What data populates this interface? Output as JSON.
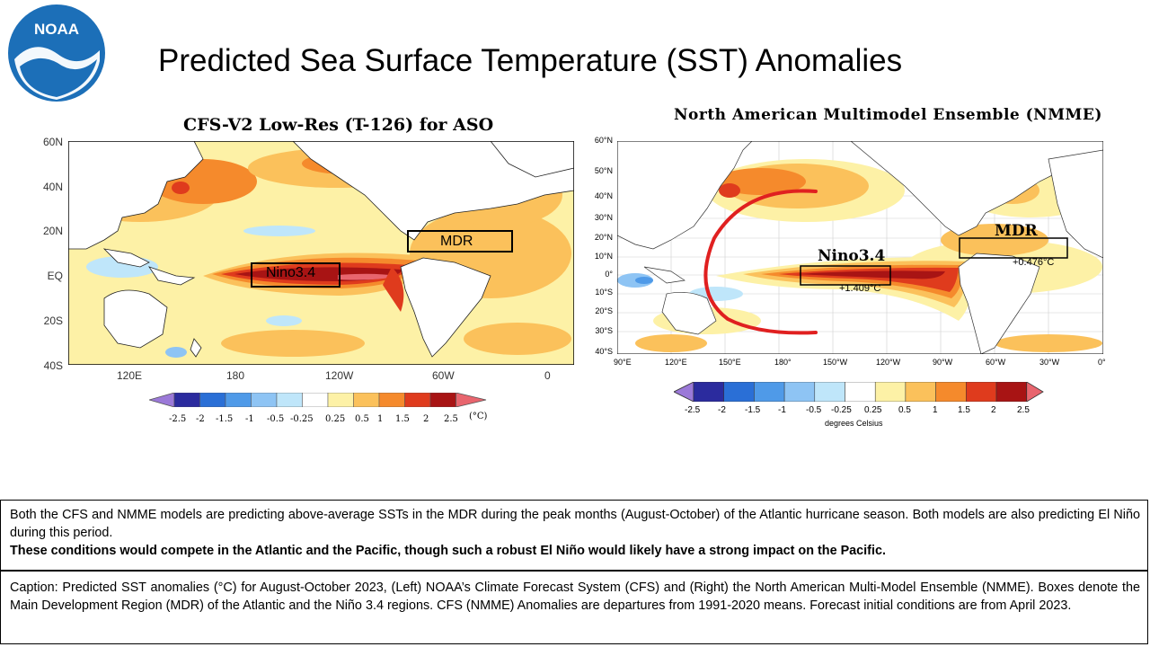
{
  "logo": {
    "text": "NOAA",
    "icon": "noaa-logo-icon"
  },
  "slide_title": "Predicted Sea Surface Temperature (SST) Anomalies",
  "left_panel": {
    "title": "CFS-V2 Low-Res (T-126) for ASO",
    "lat_labels": [
      "60N",
      "40N",
      "20N",
      "EQ",
      "20S",
      "40S"
    ],
    "lon_labels": [
      "120E",
      "180",
      "120W",
      "60W",
      "0"
    ],
    "boxes": [
      {
        "name": "Nino3.4",
        "label": "Nino3.4"
      },
      {
        "name": "MDR",
        "label": "MDR"
      }
    ],
    "colorbar_ticks": [
      "-2.5",
      "-2",
      "-1.5",
      "-1",
      "-0.5",
      "-0.25",
      "0.25",
      "0.5",
      "1",
      "1.5",
      "2",
      "2.5"
    ],
    "colorbar_unit": "(°C)"
  },
  "right_panel": {
    "title": "North American Multimodel Ensemble (NMME)",
    "lat_labels": [
      "60°N",
      "50°N",
      "40°N",
      "30°N",
      "20°N",
      "10°N",
      "0°",
      "10°S",
      "20°S",
      "30°S",
      "40°S"
    ],
    "lon_labels": [
      "90°E",
      "120°E",
      "150°E",
      "180°",
      "150°W",
      "120°W",
      "90°W",
      "60°W",
      "30°W",
      "0°"
    ],
    "boxes": [
      {
        "name": "Nino3.4",
        "label": "Nino3.4",
        "value": "+1.409°C"
      },
      {
        "name": "MDR",
        "label": "MDR",
        "value": "+0.476°C"
      }
    ],
    "colorbar_ticks": [
      "-2.5",
      "-2",
      "-1.5",
      "-1",
      "-0.5",
      "-0.25",
      "0.25",
      "0.5",
      "1",
      "1.5",
      "2",
      "2.5"
    ],
    "colorbar_unit": "degrees Celsius",
    "annotation": "red-arc-arrow"
  },
  "colors": {
    "scale": [
      "#9b79d8",
      "#2b2b9e",
      "#2a6fd6",
      "#4f9ae8",
      "#8ec4f4",
      "#bfe6fa",
      "#ffffff",
      "#fdf1a6",
      "#fbc15b",
      "#f58a2c",
      "#df3b1d",
      "#a81414",
      "#e8656e"
    ],
    "accent_red": "#e02020",
    "noaa_blue": "#1c6fb8"
  },
  "summary": {
    "line1": "Both the CFS and NMME models are predicting above-average SSTs in the MDR during the peak months (August-October) of the Atlantic hurricane season. Both models are also predicting El Niño during this period.",
    "line2": "These conditions would compete in the Atlantic and the Pacific, though such a robust El Niño would likely have a strong impact on the Pacific."
  },
  "caption": "Caption: Predicted SST anomalies (°C) for August-October 2023, (Left) NOAA’s Climate Forecast System (CFS) and (Right) the North American Multi-Model Ensemble (NMME). Boxes denote the Main Development Region (MDR) of the Atlantic and the Niño 3.4 regions. CFS (NMME) Anomalies are departures from 1991-2020 means.  Forecast initial conditions are from April 2023."
}
